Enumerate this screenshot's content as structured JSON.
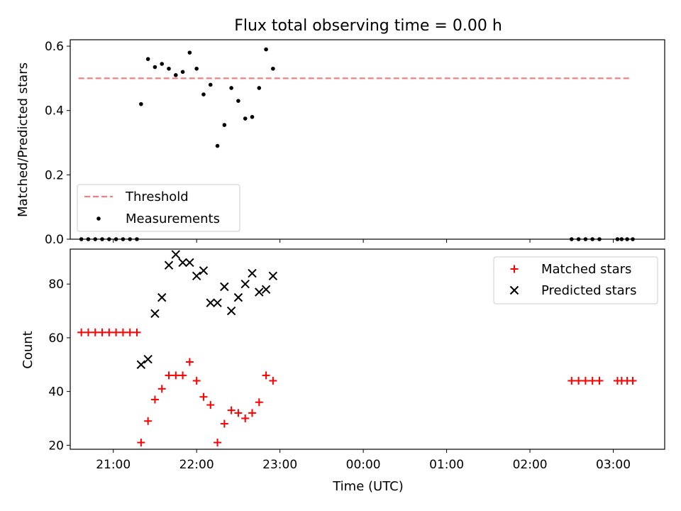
{
  "title": "Flux total observing time = 0.00 h",
  "colors": {
    "threshold": "#f08080",
    "measurements": "#000000",
    "matched": "#ff0000",
    "predicted": "#000000"
  },
  "chart_data": [
    {
      "type": "scatter",
      "ylabel": "Matched/Predicted stars",
      "xlim": [
        "20:29",
        "03:37"
      ],
      "ylim": [
        0,
        0.62
      ],
      "y_ticks": [
        "0.0",
        "0.2",
        "0.4",
        "0.6"
      ],
      "x_tick_labels_shown": false,
      "legend_position": "lower-left",
      "grid": false,
      "threshold": {
        "name": "Threshold",
        "value": 0.5,
        "x_start": "20:35",
        "x_end": "03:13",
        "style": "dashed"
      },
      "series": [
        {
          "name": "Measurements",
          "points": [
            [
              "20:37",
              0.0
            ],
            [
              "20:42",
              0.0
            ],
            [
              "20:47",
              0.0
            ],
            [
              "20:52",
              0.0
            ],
            [
              "20:57",
              0.0
            ],
            [
              "21:02",
              0.0
            ],
            [
              "21:07",
              0.0
            ],
            [
              "21:12",
              0.0
            ],
            [
              "21:17",
              0.0
            ],
            [
              "21:20",
              0.42
            ],
            [
              "21:25",
              0.56
            ],
            [
              "21:30",
              0.535
            ],
            [
              "21:35",
              0.545
            ],
            [
              "21:40",
              0.53
            ],
            [
              "21:45",
              0.51
            ],
            [
              "21:50",
              0.52
            ],
            [
              "21:55",
              0.58
            ],
            [
              "22:00",
              0.53
            ],
            [
              "22:05",
              0.45
            ],
            [
              "22:10",
              0.48
            ],
            [
              "22:15",
              0.29
            ],
            [
              "22:20",
              0.355
            ],
            [
              "22:25",
              0.47
            ],
            [
              "22:30",
              0.43
            ],
            [
              "22:35",
              0.375
            ],
            [
              "22:40",
              0.38
            ],
            [
              "22:45",
              0.47
            ],
            [
              "22:50",
              0.59
            ],
            [
              "22:55",
              0.53
            ],
            [
              "02:30",
              0.0
            ],
            [
              "02:35",
              0.0
            ],
            [
              "02:40",
              0.0
            ],
            [
              "02:45",
              0.0
            ],
            [
              "02:50",
              0.0
            ],
            [
              "03:03",
              0.0
            ],
            [
              "03:06",
              0.0
            ],
            [
              "03:10",
              0.0
            ],
            [
              "03:14",
              0.0
            ]
          ]
        }
      ]
    },
    {
      "type": "scatter",
      "xlabel": "Time (UTC)",
      "ylabel": "Count",
      "xlim": [
        "20:29",
        "03:37"
      ],
      "ylim": [
        18.5,
        93
      ],
      "x_ticks": [
        "21:00",
        "22:00",
        "23:00",
        "00:00",
        "01:00",
        "02:00",
        "03:00"
      ],
      "y_ticks": [
        "20",
        "40",
        "60",
        "80"
      ],
      "legend_position": "upper-right",
      "grid": false,
      "series": [
        {
          "name": "Matched stars",
          "marker": "plus",
          "points": [
            [
              "20:37",
              62
            ],
            [
              "20:42",
              62
            ],
            [
              "20:47",
              62
            ],
            [
              "20:52",
              62
            ],
            [
              "20:57",
              62
            ],
            [
              "21:02",
              62
            ],
            [
              "21:07",
              62
            ],
            [
              "21:12",
              62
            ],
            [
              "21:17",
              62
            ],
            [
              "21:20",
              21
            ],
            [
              "21:25",
              29
            ],
            [
              "21:30",
              37
            ],
            [
              "21:35",
              41
            ],
            [
              "21:40",
              46
            ],
            [
              "21:45",
              46
            ],
            [
              "21:50",
              46
            ],
            [
              "21:55",
              51
            ],
            [
              "22:00",
              44
            ],
            [
              "22:05",
              38
            ],
            [
              "22:10",
              35
            ],
            [
              "22:15",
              21
            ],
            [
              "22:20",
              28
            ],
            [
              "22:25",
              33
            ],
            [
              "22:30",
              32
            ],
            [
              "22:35",
              30
            ],
            [
              "22:40",
              32
            ],
            [
              "22:45",
              36
            ],
            [
              "22:50",
              46
            ],
            [
              "22:55",
              44
            ],
            [
              "02:30",
              44
            ],
            [
              "02:35",
              44
            ],
            [
              "02:40",
              44
            ],
            [
              "02:45",
              44
            ],
            [
              "02:50",
              44
            ],
            [
              "03:03",
              44
            ],
            [
              "03:06",
              44
            ],
            [
              "03:10",
              44
            ],
            [
              "03:14",
              44
            ]
          ]
        },
        {
          "name": "Predicted stars",
          "marker": "x",
          "points": [
            [
              "21:20",
              50
            ],
            [
              "21:25",
              52
            ],
            [
              "21:30",
              69
            ],
            [
              "21:35",
              75
            ],
            [
              "21:40",
              87
            ],
            [
              "21:45",
              91
            ],
            [
              "21:50",
              88
            ],
            [
              "21:55",
              88
            ],
            [
              "22:00",
              83
            ],
            [
              "22:05",
              85
            ],
            [
              "22:10",
              73
            ],
            [
              "22:15",
              73
            ],
            [
              "22:20",
              79
            ],
            [
              "22:25",
              70
            ],
            [
              "22:30",
              75
            ],
            [
              "22:35",
              80
            ],
            [
              "22:40",
              84
            ],
            [
              "22:45",
              77
            ],
            [
              "22:50",
              78
            ],
            [
              "22:55",
              83
            ]
          ]
        }
      ]
    }
  ]
}
